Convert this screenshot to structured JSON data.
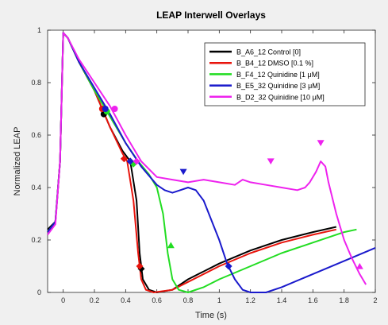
{
  "chart_data": {
    "type": "line",
    "title": "LEAP Interwell Overlays",
    "xlabel": "Time (s)",
    "ylabel": "Normalized LEAP",
    "xlim": [
      -0.1,
      2.0
    ],
    "ylim": [
      0,
      1
    ],
    "xticks": [
      0,
      0.2,
      0.4,
      0.6,
      0.8,
      1,
      1.2,
      1.4,
      1.6,
      1.8,
      2
    ],
    "xtick_labels": [
      "0",
      "0.2",
      "0.4",
      "0.6",
      "0.8",
      "1",
      "1.2",
      "1.4",
      "1.6",
      "1.8",
      "2"
    ],
    "yticks": [
      0,
      0.2,
      0.4,
      0.6,
      0.8,
      1
    ],
    "ytick_labels": [
      "0",
      "0.2",
      "0.4",
      "0.6",
      "0.8",
      "1"
    ],
    "grid": false,
    "legend_position": "top-right",
    "series": [
      {
        "name": "B_A6_12 Control [0]",
        "color": "#000000",
        "points": [
          [
            -0.1,
            0.24
          ],
          [
            -0.05,
            0.27
          ],
          [
            -0.02,
            0.5
          ],
          [
            0,
            0.99
          ],
          [
            0.03,
            0.97
          ],
          [
            0.1,
            0.88
          ],
          [
            0.2,
            0.77
          ],
          [
            0.3,
            0.63
          ],
          [
            0.38,
            0.54
          ],
          [
            0.43,
            0.5
          ],
          [
            0.47,
            0.35
          ],
          [
            0.49,
            0.15
          ],
          [
            0.51,
            0.05
          ],
          [
            0.55,
            0.01
          ],
          [
            0.6,
            0.0
          ],
          [
            0.7,
            0.01
          ],
          [
            0.8,
            0.05
          ],
          [
            1.0,
            0.11
          ],
          [
            1.2,
            0.16
          ],
          [
            1.4,
            0.2
          ],
          [
            1.6,
            0.23
          ],
          [
            1.75,
            0.25
          ]
        ],
        "markers": [
          {
            "x": 0.26,
            "y": 0.68,
            "kind": "circle"
          },
          {
            "x": 0.43,
            "y": 0.5,
            "kind": "diamond"
          },
          {
            "x": 0.5,
            "y": 0.09,
            "kind": "diamond"
          }
        ]
      },
      {
        "name": "B_B4_12 DMSO [0.1 %]",
        "color": "#e8140c",
        "points": [
          [
            -0.1,
            0.23
          ],
          [
            -0.05,
            0.27
          ],
          [
            -0.02,
            0.5
          ],
          [
            0,
            0.99
          ],
          [
            0.03,
            0.97
          ],
          [
            0.1,
            0.88
          ],
          [
            0.2,
            0.77
          ],
          [
            0.3,
            0.63
          ],
          [
            0.38,
            0.53
          ],
          [
            0.41,
            0.5
          ],
          [
            0.45,
            0.35
          ],
          [
            0.48,
            0.15
          ],
          [
            0.5,
            0.05
          ],
          [
            0.53,
            0.01
          ],
          [
            0.58,
            0.0
          ],
          [
            0.7,
            0.01
          ],
          [
            0.8,
            0.04
          ],
          [
            1.0,
            0.1
          ],
          [
            1.2,
            0.15
          ],
          [
            1.4,
            0.19
          ],
          [
            1.6,
            0.22
          ],
          [
            1.75,
            0.24
          ]
        ],
        "markers": [
          {
            "x": 0.25,
            "y": 0.7,
            "kind": "circle"
          },
          {
            "x": 0.39,
            "y": 0.51,
            "kind": "diamond"
          },
          {
            "x": 0.49,
            "y": 0.1,
            "kind": "diamond"
          }
        ]
      },
      {
        "name": "B_F4_12 Quinidine [1 μM]",
        "color": "#22dd22",
        "points": [
          [
            -0.1,
            0.23
          ],
          [
            -0.05,
            0.27
          ],
          [
            -0.02,
            0.5
          ],
          [
            0,
            0.99
          ],
          [
            0.03,
            0.97
          ],
          [
            0.1,
            0.88
          ],
          [
            0.2,
            0.77
          ],
          [
            0.3,
            0.67
          ],
          [
            0.4,
            0.57
          ],
          [
            0.48,
            0.5
          ],
          [
            0.55,
            0.45
          ],
          [
            0.6,
            0.4
          ],
          [
            0.64,
            0.3
          ],
          [
            0.67,
            0.15
          ],
          [
            0.7,
            0.05
          ],
          [
            0.74,
            0.01
          ],
          [
            0.8,
            0.0
          ],
          [
            0.9,
            0.02
          ],
          [
            1.0,
            0.05
          ],
          [
            1.2,
            0.1
          ],
          [
            1.4,
            0.15
          ],
          [
            1.6,
            0.19
          ],
          [
            1.8,
            0.23
          ],
          [
            1.88,
            0.24
          ]
        ],
        "markers": [
          {
            "x": 0.28,
            "y": 0.69,
            "kind": "circle"
          },
          {
            "x": 0.45,
            "y": 0.49,
            "kind": "diamond"
          },
          {
            "x": 0.69,
            "y": 0.18,
            "kind": "triangle-up"
          }
        ]
      },
      {
        "name": "B_E5_32 Quinidine [3 μM]",
        "color": "#1a1acc",
        "points": [
          [
            -0.1,
            0.23
          ],
          [
            -0.05,
            0.27
          ],
          [
            -0.02,
            0.5
          ],
          [
            0,
            0.99
          ],
          [
            0.03,
            0.97
          ],
          [
            0.1,
            0.88
          ],
          [
            0.2,
            0.78
          ],
          [
            0.3,
            0.68
          ],
          [
            0.4,
            0.57
          ],
          [
            0.5,
            0.48
          ],
          [
            0.6,
            0.41
          ],
          [
            0.65,
            0.39
          ],
          [
            0.7,
            0.38
          ],
          [
            0.75,
            0.39
          ],
          [
            0.8,
            0.4
          ],
          [
            0.85,
            0.39
          ],
          [
            0.9,
            0.35
          ],
          [
            1.0,
            0.2
          ],
          [
            1.05,
            0.11
          ],
          [
            1.1,
            0.05
          ],
          [
            1.15,
            0.01
          ],
          [
            1.2,
            0.0
          ],
          [
            1.3,
            0.0
          ],
          [
            1.4,
            0.02
          ],
          [
            1.6,
            0.07
          ],
          [
            1.8,
            0.12
          ],
          [
            2.0,
            0.17
          ]
        ],
        "markers": [
          {
            "x": 0.27,
            "y": 0.7,
            "kind": "circle"
          },
          {
            "x": 0.43,
            "y": 0.5,
            "kind": "diamond"
          },
          {
            "x": 1.06,
            "y": 0.1,
            "kind": "diamond"
          }
        ]
      },
      {
        "name": "B_D2_32 Quinidine [10 μM]",
        "color": "#ee22ee",
        "points": [
          [
            -0.1,
            0.22
          ],
          [
            -0.05,
            0.26
          ],
          [
            -0.02,
            0.5
          ],
          [
            0,
            0.99
          ],
          [
            0.03,
            0.97
          ],
          [
            0.1,
            0.89
          ],
          [
            0.2,
            0.8
          ],
          [
            0.3,
            0.71
          ],
          [
            0.4,
            0.6
          ],
          [
            0.5,
            0.5
          ],
          [
            0.6,
            0.44
          ],
          [
            0.7,
            0.43
          ],
          [
            0.8,
            0.42
          ],
          [
            0.9,
            0.43
          ],
          [
            1.0,
            0.42
          ],
          [
            1.1,
            0.41
          ],
          [
            1.15,
            0.43
          ],
          [
            1.2,
            0.42
          ],
          [
            1.3,
            0.41
          ],
          [
            1.4,
            0.4
          ],
          [
            1.5,
            0.39
          ],
          [
            1.55,
            0.4
          ],
          [
            1.58,
            0.42
          ],
          [
            1.62,
            0.46
          ],
          [
            1.65,
            0.5
          ],
          [
            1.68,
            0.48
          ],
          [
            1.7,
            0.42
          ],
          [
            1.75,
            0.3
          ],
          [
            1.8,
            0.2
          ],
          [
            1.85,
            0.13
          ],
          [
            1.9,
            0.07
          ],
          [
            1.94,
            0.03
          ]
        ],
        "markers": [
          {
            "x": 0.33,
            "y": 0.7,
            "kind": "circle"
          },
          {
            "x": 0.47,
            "y": 0.5,
            "kind": "diamond"
          },
          {
            "x": 0.77,
            "y": 0.46,
            "kind": "triangle-down",
            "color": "#1a1acc"
          },
          {
            "x": 1.33,
            "y": 0.5,
            "kind": "triangle-down"
          },
          {
            "x": 1.65,
            "y": 0.57,
            "kind": "triangle-down"
          },
          {
            "x": 1.9,
            "y": 0.1,
            "kind": "triangle-up"
          }
        ]
      }
    ]
  }
}
